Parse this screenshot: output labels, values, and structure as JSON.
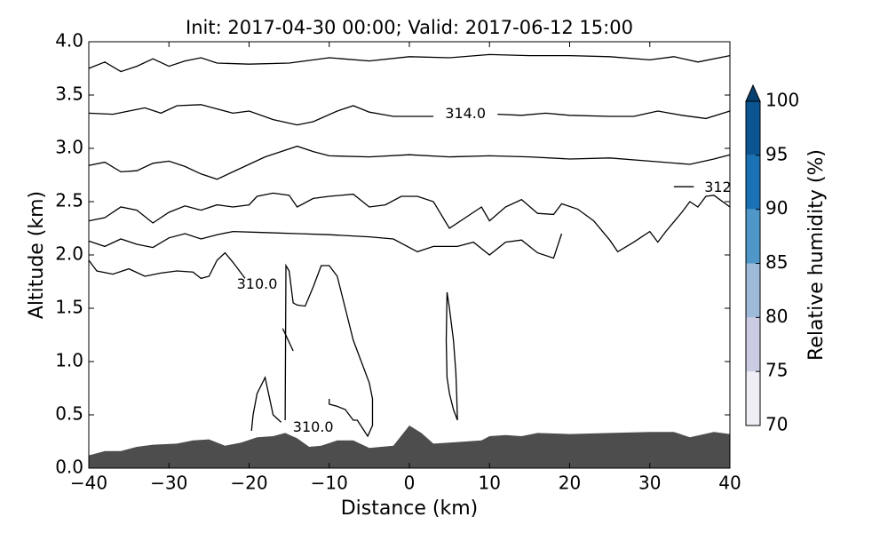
{
  "chart_data": {
    "type": "contour",
    "title": "Init: 2017-04-30 00:00; Valid: 2017-06-12 15:00",
    "xlabel": "Distance (km)",
    "ylabel": "Altitude (km)",
    "xlim": [
      -40,
      40
    ],
    "ylim": [
      0,
      4
    ],
    "xticks": [
      {
        "value": -40,
        "label": "−40"
      },
      {
        "value": -30,
        "label": "−30"
      },
      {
        "value": -20,
        "label": "−20"
      },
      {
        "value": -10,
        "label": "−10"
      },
      0,
      10,
      20,
      30,
      40
    ],
    "yticks": [
      {
        "value": 0,
        "label": "0.0"
      },
      0.5,
      {
        "value": 1,
        "label": "1.0"
      },
      1.5,
      {
        "value": 2,
        "label": "2.0"
      },
      2.5,
      {
        "value": 3,
        "label": "3.0"
      },
      3.5,
      {
        "value": 4,
        "label": "4.0"
      }
    ],
    "terrain": {
      "color": "#4d4d4d",
      "x": [
        -40,
        -38,
        -36,
        -34,
        -32,
        -29,
        -27,
        -25,
        -23,
        -21,
        -19,
        -17,
        -15.5,
        -14,
        -12.5,
        -11,
        -9,
        -7,
        -5,
        -2,
        0,
        1.5,
        3,
        5,
        7,
        9,
        10,
        12,
        14,
        16,
        20,
        25,
        30,
        33,
        35,
        38,
        40
      ],
      "y": [
        0.12,
        0.16,
        0.16,
        0.2,
        0.22,
        0.23,
        0.26,
        0.27,
        0.21,
        0.24,
        0.29,
        0.3,
        0.33,
        0.28,
        0.2,
        0.21,
        0.26,
        0.26,
        0.19,
        0.21,
        0.4,
        0.33,
        0.23,
        0.24,
        0.25,
        0.26,
        0.3,
        0.31,
        0.3,
        0.33,
        0.32,
        0.33,
        0.34,
        0.34,
        0.29,
        0.34,
        0.32
      ]
    },
    "contour_color": "#000000",
    "contours": [
      {
        "x": [
          -40,
          -38,
          -36,
          -34,
          -32,
          -30,
          -28,
          -26,
          -24,
          -20,
          -15,
          -10,
          -5,
          0,
          5,
          10,
          15,
          20,
          25,
          30,
          33,
          36,
          40
        ],
        "y": [
          3.75,
          3.81,
          3.72,
          3.77,
          3.84,
          3.77,
          3.82,
          3.85,
          3.8,
          3.79,
          3.8,
          3.85,
          3.82,
          3.86,
          3.85,
          3.88,
          3.87,
          3.87,
          3.86,
          3.83,
          3.86,
          3.81,
          3.87
        ]
      },
      {
        "x": [
          -40,
          -37,
          -35,
          -33,
          -31,
          -29,
          -26,
          -24,
          -22,
          -20,
          -17,
          -14,
          -12,
          -9,
          -7,
          -5,
          -2,
          0,
          3,
          7,
          11,
          14,
          17,
          20,
          25,
          28,
          31,
          34,
          37,
          40
        ],
        "y": [
          3.33,
          3.32,
          3.35,
          3.38,
          3.33,
          3.4,
          3.41,
          3.37,
          3.33,
          3.35,
          3.27,
          3.22,
          3.25,
          3.35,
          3.4,
          3.34,
          3.3,
          3.3,
          3.3,
          null,
          3.32,
          3.31,
          3.33,
          3.31,
          3.3,
          3.3,
          3.35,
          3.31,
          3.28,
          3.35
        ]
      },
      {
        "x": [
          -40,
          -38,
          -36,
          -34,
          -32,
          -30,
          -28,
          -26,
          -24,
          -22,
          -20,
          -18,
          -16,
          -14,
          -12,
          -10,
          -5,
          0,
          5,
          10,
          15,
          20,
          25,
          30,
          35,
          38,
          40
        ],
        "y": [
          2.84,
          2.87,
          2.78,
          2.79,
          2.86,
          2.88,
          2.83,
          2.76,
          2.71,
          2.78,
          2.85,
          2.92,
          2.97,
          3.02,
          2.97,
          2.93,
          2.92,
          2.94,
          2.92,
          2.93,
          2.92,
          2.9,
          2.91,
          2.88,
          2.85,
          2.9,
          2.94
        ]
      },
      {
        "x": [
          -40,
          -38,
          -36,
          -34,
          -32,
          -30,
          -28,
          -26,
          -24,
          -22,
          -20,
          -19,
          -17,
          -15,
          -14,
          -12,
          -10,
          -7,
          -5,
          -3,
          -1,
          1,
          3,
          5,
          7,
          9,
          10,
          12,
          14,
          16,
          18,
          19,
          21,
          23,
          25,
          26,
          28,
          30,
          31,
          32,
          34,
          35,
          36,
          37,
          38,
          40
        ],
        "y": [
          2.32,
          2.35,
          2.45,
          2.42,
          2.3,
          2.4,
          2.46,
          2.42,
          2.47,
          2.45,
          2.47,
          2.55,
          2.58,
          2.56,
          2.45,
          2.53,
          2.55,
          2.57,
          2.45,
          2.47,
          2.55,
          2.55,
          2.5,
          2.25,
          2.35,
          2.45,
          2.32,
          2.45,
          2.52,
          2.39,
          2.38,
          2.48,
          2.43,
          2.32,
          2.14,
          2.03,
          2.12,
          2.22,
          2.12,
          2.22,
          2.4,
          2.5,
          2.45,
          2.55,
          2.56,
          2.45
        ]
      },
      {
        "x": [
          33,
          35.5
        ],
        "y": [
          2.64,
          2.64
        ]
      },
      {
        "x": [
          -40,
          -38,
          -36,
          -34,
          -32,
          -30,
          -28,
          -26,
          -24,
          -22,
          -18,
          -14,
          -10,
          -5,
          -2,
          1,
          3,
          6,
          8,
          10,
          12,
          14,
          16,
          18,
          19
        ],
        "y": [
          2.13,
          2.08,
          2.15,
          2.1,
          2.07,
          2.16,
          2.2,
          2.15,
          2.19,
          2.22,
          2.21,
          2.2,
          2.19,
          2.17,
          2.15,
          2.03,
          2.08,
          2.08,
          2.12,
          2.0,
          2.12,
          2.14,
          2.02,
          1.97,
          2.2
        ]
      },
      {
        "x": [
          -40,
          -39,
          -37,
          -35,
          -33,
          -31,
          -29,
          -27,
          -26,
          -25,
          -24,
          -23,
          -22,
          -21,
          -20.5
        ],
        "y": [
          1.95,
          1.85,
          1.82,
          1.87,
          1.8,
          1.83,
          1.85,
          1.84,
          1.78,
          1.8,
          1.95,
          2.02,
          1.93,
          1.83,
          1.78
        ]
      },
      {
        "x": [
          -19.7,
          -19.5,
          -19,
          -18,
          -17,
          -16
        ],
        "y": [
          0.35,
          0.5,
          0.7,
          0.85,
          0.5,
          0.43
        ]
      },
      {
        "x": [
          -15.8,
          -14.5
        ],
        "y": [
          1.31,
          1.1
        ]
      },
      {
        "x": [
          -15.5,
          -15.4,
          -15,
          -14.5,
          -14,
          -13,
          -12,
          -11,
          -10,
          -9,
          -8,
          -7,
          -6,
          -5,
          -4.6,
          -4.6,
          -5.2,
          -6.5,
          -7,
          -8,
          -9,
          -10,
          -10
        ],
        "y": [
          0.45,
          1.9,
          1.85,
          1.55,
          1.53,
          1.52,
          1.7,
          1.9,
          1.9,
          1.8,
          1.5,
          1.2,
          1.0,
          0.8,
          0.65,
          0.4,
          0.3,
          0.45,
          0.45,
          0.55,
          0.58,
          0.6,
          0.65
        ]
      },
      {
        "x": [
          6,
          5.9,
          5.8,
          5.5,
          5,
          4.7,
          4.6,
          4.7,
          5,
          5.5,
          6
        ],
        "y": [
          0.45,
          0.7,
          0.9,
          1.2,
          1.5,
          1.65,
          1.2,
          0.85,
          0.7,
          0.55,
          0.45
        ]
      }
    ],
    "annotations": [
      {
        "text": "314.0",
        "x": 7,
        "y": 3.32
      },
      {
        "text": "312",
        "x": 38.5,
        "y": 2.63
      },
      {
        "text": "310.0",
        "x": -19,
        "y": 1.72
      },
      {
        "text": "310.0",
        "x": -12,
        "y": 0.38
      }
    ],
    "colorbar": {
      "label": "Relative humidity (%)",
      "bounds": [
        70,
        75,
        80,
        85,
        90,
        95,
        100
      ],
      "colors": [
        "#efedf5",
        "#cbcbe3",
        "#9ebad9",
        "#4e97c8",
        "#1a72b4",
        "#0b5592"
      ],
      "extend": "max",
      "extend_color": "#08406f",
      "ticks": [
        70,
        75,
        80,
        85,
        90,
        95,
        100
      ]
    }
  }
}
